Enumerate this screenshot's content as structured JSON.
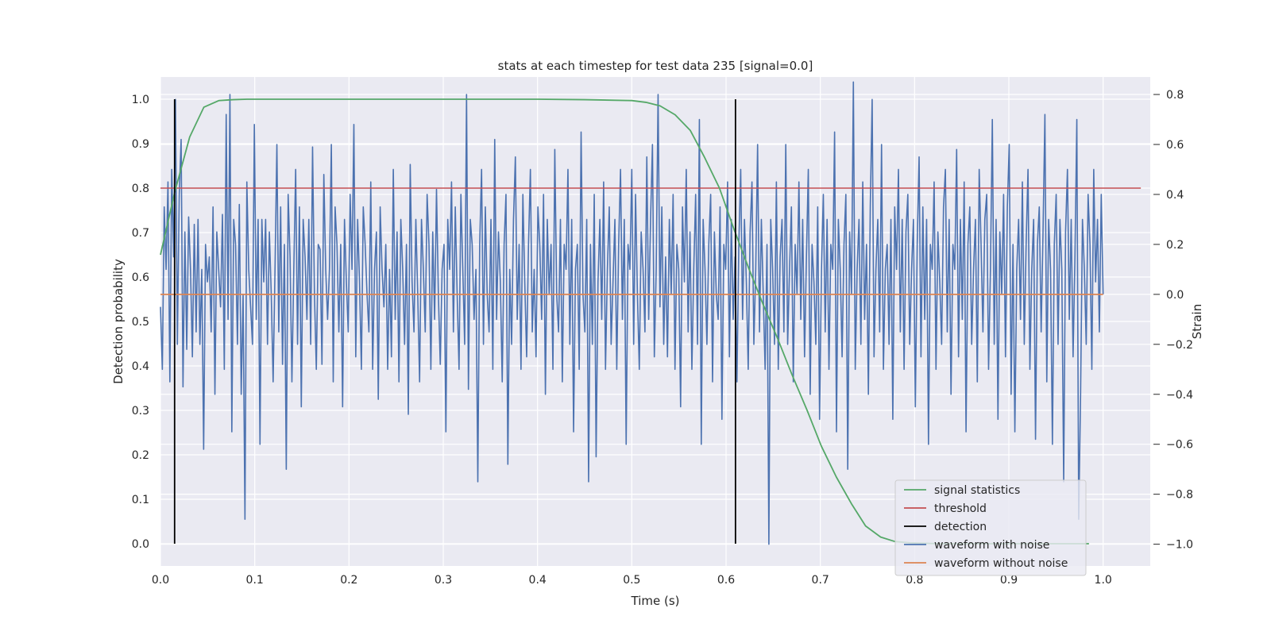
{
  "chart_data": {
    "type": "line",
    "title": "stats at each timestep for test data 235 [signal=0.0]",
    "xlabel": "Time (s)",
    "ylabel": "Detection probability",
    "y2label": "Strain",
    "xlim": [
      0.0,
      1.05
    ],
    "ylim": [
      -0.05,
      1.05
    ],
    "y2lim": [
      -1.087,
      0.87
    ],
    "xticks": [
      "0.0",
      "0.1",
      "0.2",
      "0.3",
      "0.4",
      "0.5",
      "0.6",
      "0.7",
      "0.8",
      "0.9",
      "1.0"
    ],
    "yticks": [
      "0.0",
      "0.1",
      "0.2",
      "0.3",
      "0.4",
      "0.5",
      "0.6",
      "0.7",
      "0.8",
      "0.9",
      "1.0"
    ],
    "y2ticks": [
      "−1.0",
      "−0.8",
      "−0.6",
      "−0.4",
      "−0.2",
      "0.0",
      "0.2",
      "0.4",
      "0.6",
      "0.8"
    ],
    "grid": true,
    "legend_position": "lower-right",
    "series": [
      {
        "name": "signal statistics",
        "axis": "left",
        "color": "#55a868",
        "x": [
          0.0,
          0.015,
          0.031,
          0.046,
          0.062,
          0.077,
          0.092,
          0.2,
          0.3,
          0.4,
          0.45,
          0.5,
          0.515,
          0.53,
          0.546,
          0.562,
          0.577,
          0.593,
          0.608,
          0.624,
          0.639,
          0.655,
          0.67,
          0.686,
          0.701,
          0.717,
          0.733,
          0.748,
          0.764,
          0.779,
          0.795,
          0.81,
          0.826,
          0.842,
          0.857,
          0.873,
          0.9,
          0.95,
          0.985
        ],
        "y": [
          0.65,
          0.79,
          0.915,
          0.982,
          0.997,
          0.999,
          1.0,
          1.0,
          1.0,
          1.0,
          0.999,
          0.997,
          0.993,
          0.985,
          0.965,
          0.93,
          0.87,
          0.8,
          0.71,
          0.62,
          0.54,
          0.46,
          0.38,
          0.3,
          0.22,
          0.15,
          0.09,
          0.04,
          0.015,
          0.005,
          0.002,
          0.001,
          0.0,
          0.0,
          0.0,
          0.0,
          0.0,
          0.0,
          0.0
        ]
      },
      {
        "name": "threshold",
        "axis": "left",
        "color": "#c44e52",
        "x": [
          0.0,
          1.04
        ],
        "y": [
          0.8,
          0.8
        ]
      },
      {
        "name": "detection",
        "axis": "left",
        "color": "#000000",
        "x": [
          0.015,
          0.61
        ],
        "y": [
          0.0,
          1.0
        ]
      },
      {
        "name": "waveform with noise",
        "axis": "right",
        "color": "#4c72b0",
        "x_start": 0.0,
        "x_end": 1.0,
        "y": [
          -0.05,
          -0.3,
          0.35,
          0.1,
          0.45,
          -0.35,
          0.5,
          0.15,
          0.78,
          -0.2,
          0.4,
          0.62,
          -0.37,
          0.25,
          -0.22,
          0.31,
          0.1,
          -0.25,
          0.28,
          -0.15,
          0.3,
          -0.2,
          0.1,
          -0.62,
          0.2,
          0.05,
          0.15,
          -0.15,
          0.35,
          -0.4,
          0.25,
          0.1,
          -0.05,
          0.32,
          -0.3,
          0.72,
          -0.1,
          0.8,
          -0.55,
          0.3,
          0.2,
          -0.2,
          0.36,
          -0.4,
          0.0,
          -0.9,
          0.45,
          0.1,
          -0.05,
          -0.2,
          0.68,
          -0.1,
          0.3,
          -0.6,
          0.3,
          0.05,
          0.3,
          -0.2,
          0.25,
          0.0,
          -0.35,
          0.1,
          0.6,
          -0.15,
          0.35,
          -0.28,
          0.2,
          -0.7,
          0.4,
          0.15,
          -0.35,
          0.1,
          0.5,
          -0.2,
          0.35,
          -0.45,
          0.3,
          0.15,
          -0.1,
          0.3,
          -0.2,
          0.59,
          0.0,
          -0.3,
          0.2,
          0.18,
          -0.28,
          0.48,
          0.1,
          -0.1,
          0.1,
          0.6,
          -0.35,
          0.35,
          0.2,
          -0.15,
          0.2,
          -0.45,
          0.3,
          0.05,
          -0.15,
          0.4,
          0.1,
          0.68,
          -0.25,
          0.3,
          0.05,
          -0.3,
          0.35,
          0.2,
          0.0,
          -0.15,
          0.45,
          -0.3,
          0.1,
          0.25,
          -0.42,
          0.35,
          0.1,
          -0.05,
          0.2,
          -0.3,
          0.1,
          -0.25,
          0.5,
          -0.1,
          0.25,
          -0.35,
          0.3,
          0.1,
          -0.2,
          0.2,
          -0.48,
          0.52,
          0.05,
          -0.15,
          0.3,
          0.0,
          -0.35,
          0.3,
          0.1,
          -0.15,
          0.4,
          0.2,
          -0.3,
          0.25,
          -0.1,
          0.42,
          0.0,
          -0.28,
          0.1,
          0.2,
          -0.55,
          0.3,
          0.1,
          0.45,
          -0.15,
          0.35,
          0.0,
          -0.3,
          0.4,
          0.1,
          -0.2,
          0.8,
          -0.38,
          0.3,
          0.2,
          -0.1,
          0.1,
          -0.75,
          0.2,
          0.5,
          -0.2,
          0.35,
          0.0,
          -0.15,
          0.3,
          -0.3,
          0.62,
          -0.1,
          0.25,
          0.05,
          -0.35,
          0.2,
          0.4,
          -0.68,
          0.1,
          -0.2,
          0.3,
          0.55,
          -0.1,
          0.2,
          -0.3,
          0.4,
          0.05,
          -0.25,
          0.2,
          0.5,
          -0.15,
          0.1,
          -0.25,
          0.35,
          0.2,
          -0.1,
          0.4,
          -0.4,
          0.3,
          0.0,
          0.2,
          -0.3,
          0.58,
          0.0,
          -0.15,
          0.3,
          -0.35,
          0.2,
          0.1,
          0.5,
          -0.2,
          0.3,
          -0.55,
          0.1,
          0.2,
          -0.3,
          0.65,
          0.0,
          -0.15,
          0.3,
          -0.75,
          0.2,
          -0.2,
          0.4,
          -0.65,
          0.05,
          0.3,
          -0.1,
          0.45,
          -0.3,
          0.1,
          0.35,
          -0.2,
          0.05,
          0.3,
          -0.3,
          0.2,
          0.5,
          -0.1,
          0.3,
          -0.6,
          0.2,
          0.1,
          0.5,
          -0.2,
          0.4,
          0.0,
          -0.3,
          0.25,
          0.1,
          -0.15,
          0.55,
          -0.1,
          0.3,
          0.6,
          -0.25,
          0.1,
          0.8,
          -0.05,
          0.35,
          -0.2,
          0.15,
          -0.25,
          0.3,
          0.0,
          0.4,
          -0.3,
          0.2,
          0.1,
          -0.45,
          0.35,
          0.05,
          0.5,
          -0.15,
          0.25,
          -0.3,
          0.1,
          0.4,
          -0.2,
          0.7,
          -0.6,
          0.3,
          0.1,
          -0.2,
          0.2,
          0.4,
          -0.35,
          0.25,
          0.0,
          -0.1,
          0.35,
          -0.5,
          0.2,
          0.1,
          0.45,
          -0.25,
          0.3,
          -0.1,
          0.15,
          -0.35,
          0.2,
          0.5,
          -0.1,
          0.3,
          0.05,
          -0.3,
          0.25,
          0.45,
          -0.2,
          0.1,
          0.6,
          -0.15,
          0.3,
          0.0,
          -0.3,
          0.2,
          -1.0,
          0.3,
          0.1,
          -0.2,
          0.45,
          -0.3,
          0.15,
          0.3,
          -0.15,
          0.6,
          -0.2,
          0.1,
          0.35,
          -0.35,
          0.2,
          0.0,
          0.45,
          -0.1,
          0.3,
          -0.25,
          0.15,
          0.5,
          -0.4,
          0.2,
          0.05,
          -0.2,
          0.35,
          -0.5,
          0.1,
          0.4,
          -0.15,
          0.3,
          -0.3,
          0.2,
          0.1,
          0.65,
          -0.55,
          0.3,
          0.1,
          -0.25,
          0.2,
          0.4,
          -0.7,
          0.25,
          0.0,
          0.85,
          -0.3,
          0.1,
          0.3,
          -0.2,
          0.45,
          -0.1,
          0.2,
          -0.4,
          0.35,
          0.78,
          -0.25,
          0.1,
          0.3,
          -0.15,
          0.6,
          -0.3,
          0.1,
          0.2,
          -0.2,
          0.3,
          -0.5,
          0.35,
          0.1,
          0.5,
          -0.15,
          0.3,
          -0.3,
          0.25,
          0.4,
          -0.2,
          0.1,
          0.3,
          -0.45,
          0.2,
          0.55,
          -0.25,
          0.35,
          -0.1,
          0.3,
          -0.6,
          0.2,
          0.1,
          0.45,
          -0.3,
          0.25,
          0.05,
          -0.2,
          0.35,
          0.5,
          -0.15,
          0.3,
          -0.4,
          0.2,
          0.1,
          0.58,
          -0.25,
          0.3,
          -0.1,
          0.45,
          -0.55,
          0.2,
          0.35,
          -0.2,
          0.1,
          0.3,
          -0.35,
          0.5,
          0.2,
          -0.15,
          0.3,
          0.4,
          -0.3,
          0.1,
          0.7,
          -0.2,
          0.3,
          -0.5,
          0.25,
          0.0,
          0.4,
          -0.25,
          0.35,
          0.6,
          -0.4,
          0.2,
          -0.55,
          0.1,
          0.3,
          -0.1,
          0.45,
          -0.2,
          0.2,
          0.5,
          -0.3,
          0.1,
          0.3,
          -0.58,
          0.2,
          0.35,
          -0.15,
          0.25,
          0.72,
          -0.35,
          0.3,
          0.1,
          -0.6,
          0.2,
          0.4,
          -0.2,
          0.3,
          0.1,
          -0.75,
          0.25,
          0.5,
          -0.1,
          0.3,
          -0.25,
          0.15,
          0.7,
          -0.9,
          -0.4,
          0.3,
          0.1,
          -0.2,
          0.4,
          0.2,
          -0.3,
          0.5,
          0.05,
          0.3,
          -0.15,
          0.4,
          0.0
        ],
        "y_shown_range": [
          -1.0,
          0.8
        ]
      },
      {
        "name": "waveform without noise",
        "axis": "right",
        "color": "#dd8452",
        "x": [
          0.0,
          1.0
        ],
        "y": [
          0.0,
          0.0
        ]
      }
    ]
  }
}
